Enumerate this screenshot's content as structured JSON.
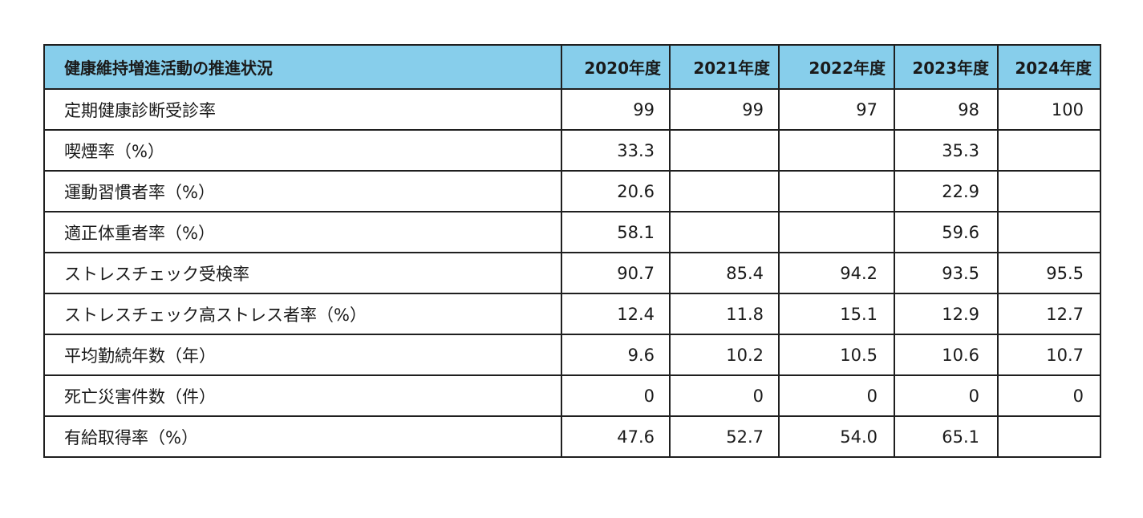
{
  "table": {
    "header": {
      "title": "健康維持増進活動の推進状況",
      "years": [
        "2020年度",
        "2021年度",
        "2022年度",
        "2023年度",
        "2024年度"
      ]
    },
    "rows": [
      {
        "label": "定期健康診断受診率",
        "values": [
          "99",
          "99",
          "97",
          "98",
          "100"
        ]
      },
      {
        "label": "喫煙率（%）",
        "values": [
          "33.3",
          "",
          "",
          "35.3",
          ""
        ]
      },
      {
        "label": "運動習慣者率（%）",
        "values": [
          "20.6",
          "",
          "",
          "22.9",
          ""
        ]
      },
      {
        "label": "適正体重者率（%）",
        "values": [
          "58.1",
          "",
          "",
          "59.6",
          ""
        ]
      },
      {
        "label": "ストレスチェック受検率",
        "values": [
          "90.7",
          "85.4",
          "94.2",
          "93.5",
          "95.5"
        ]
      },
      {
        "label": "ストレスチェック高ストレス者率（%）",
        "values": [
          "12.4",
          "11.8",
          "15.1",
          "12.9",
          "12.7"
        ]
      },
      {
        "label": "平均勤続年数（年）",
        "values": [
          "9.6",
          "10.2",
          "10.5",
          "10.6",
          "10.7"
        ]
      },
      {
        "label": "死亡災害件数（件）",
        "values": [
          "0",
          "0",
          "0",
          "0",
          "0"
        ]
      },
      {
        "label": "有給取得率（%）",
        "values": [
          "47.6",
          "52.7",
          "54.0",
          "65.1",
          ""
        ]
      }
    ]
  },
  "colors": {
    "header_background": "#87ceeb",
    "border": "#1f1f1f"
  }
}
